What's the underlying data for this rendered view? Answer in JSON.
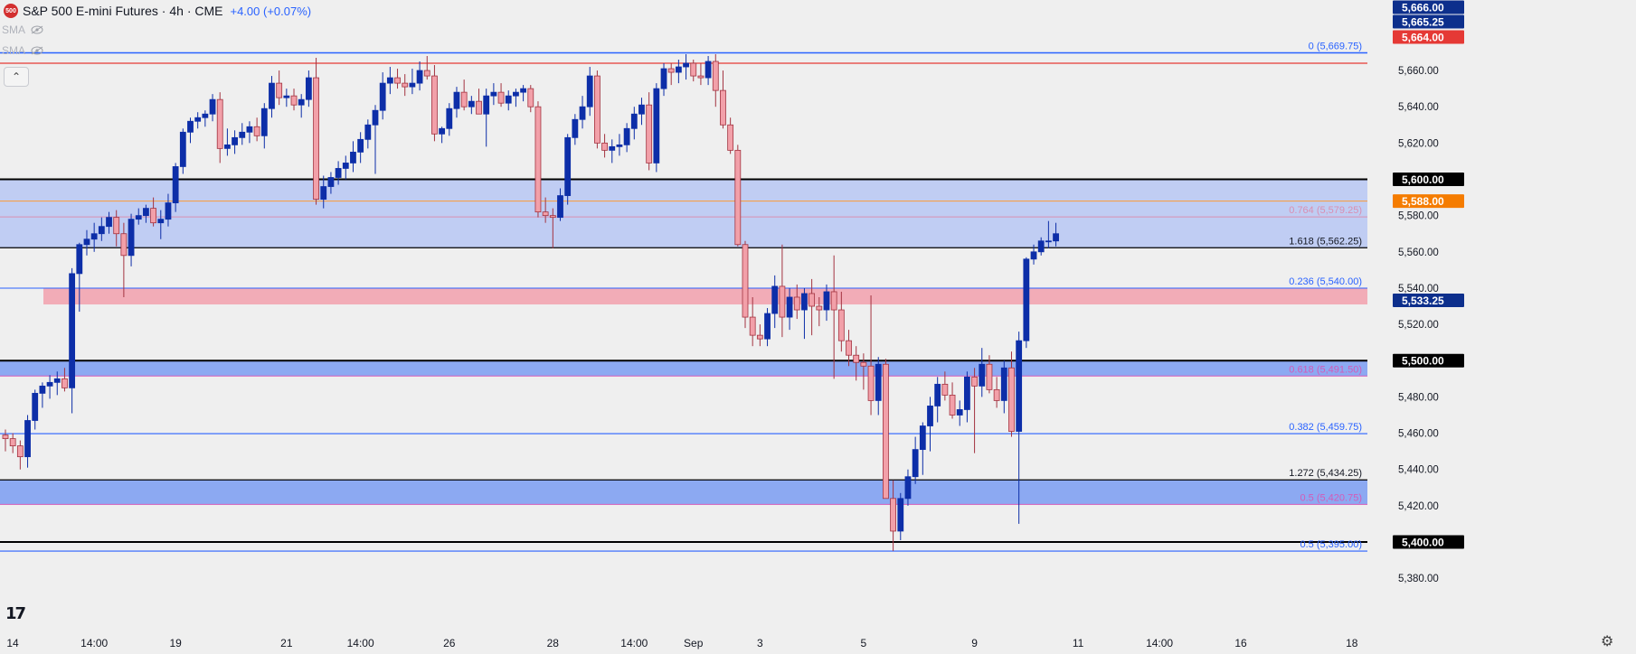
{
  "header": {
    "symbol_badge": "500",
    "title": "S&P 500 E-mini Futures · 4h · CME",
    "change": "+4.00 (+0.07%)"
  },
  "indicators": [
    {
      "label": "SMA",
      "icon": "eye-hidden-icon"
    },
    {
      "label": "SMA",
      "icon": "eye-hidden-icon"
    }
  ],
  "collapse_icon": "chevron-up-icon",
  "logo_text": "17",
  "settings_icon": "gear-icon",
  "chart_data": {
    "type": "candlestick",
    "title": "S&P 500 E-mini Futures · 4h · CME",
    "y_range": [
      5374,
      5670
    ],
    "y_ticks": [
      {
        "value": 5380,
        "label": "5,380.00"
      },
      {
        "value": 5420,
        "label": "5,420.00"
      },
      {
        "value": 5440,
        "label": "5,440.00"
      },
      {
        "value": 5460,
        "label": "5,460.00"
      },
      {
        "value": 5480,
        "label": "5,480.00"
      },
      {
        "value": 5520,
        "label": "5,520.00"
      },
      {
        "value": 5540,
        "label": "5,540.00"
      },
      {
        "value": 5560,
        "label": "5,560.00"
      },
      {
        "value": 5580,
        "label": "5,580.00"
      },
      {
        "value": 5620,
        "label": "5,620.00"
      },
      {
        "value": 5640,
        "label": "5,640.00"
      },
      {
        "value": 5660,
        "label": "5,660.00"
      }
    ],
    "x_ticks": [
      {
        "bar": 0,
        "label": "14"
      },
      {
        "bar": 12,
        "label": "14:00"
      },
      {
        "bar": 23,
        "label": "19"
      },
      {
        "bar": 38,
        "label": "21"
      },
      {
        "bar": 48,
        "label": "14:00"
      },
      {
        "bar": 60,
        "label": "26"
      },
      {
        "bar": 74,
        "label": "28"
      },
      {
        "bar": 85,
        "label": "14:00"
      },
      {
        "bar": 93,
        "label": "Sep"
      },
      {
        "bar": 102,
        "label": "3"
      },
      {
        "bar": 116,
        "label": "5"
      },
      {
        "bar": 131,
        "label": "9"
      },
      {
        "bar": 145,
        "label": "11"
      },
      {
        "bar": 156,
        "label": "14:00"
      },
      {
        "bar": 167,
        "label": "16"
      },
      {
        "bar": 182,
        "label": "18"
      }
    ],
    "price_labels": [
      {
        "value": 5666.0,
        "label": "5,666.00",
        "color": "#0d2f8c"
      },
      {
        "value": 5665.25,
        "label": "5,665.25",
        "color": "#0d2f8c"
      },
      {
        "value": 5664.0,
        "label": "5,664.00",
        "color": "#e53935"
      },
      {
        "value": 5600.0,
        "label": "5,600.00",
        "color": "#000000"
      },
      {
        "value": 5588.0,
        "label": "5,588.00",
        "color": "#f57c00"
      },
      {
        "value": 5533.25,
        "label": "5,533.25",
        "color": "#0d2f8c"
      },
      {
        "value": 5500.0,
        "label": "5,500.00",
        "color": "#000000"
      },
      {
        "value": 5400.0,
        "label": "5,400.00",
        "color": "#000000"
      }
    ],
    "zones": [
      {
        "from": 5562.25,
        "to": 5600.0,
        "color": "#b7c7f3"
      },
      {
        "from": 5531.0,
        "to": 5540.0,
        "color": "#f2a0ad"
      },
      {
        "from": 5491.5,
        "to": 5500.0,
        "color": "#7a9cf2"
      },
      {
        "from": 5420.75,
        "to": 5434.25,
        "color": "#7a9cf2"
      }
    ],
    "levels": [
      {
        "value": 5669.75,
        "label": "0 (5,669.75)",
        "color": "#2962ff",
        "lw": 1.5
      },
      {
        "value": 5664.0,
        "label": "",
        "color": "#e53935",
        "lw": 1.2
      },
      {
        "value": 5600.0,
        "label": "",
        "color": "#000000",
        "lw": 2
      },
      {
        "value": 5588.0,
        "label": "",
        "color": "#f5a04a",
        "lw": 1.2
      },
      {
        "value": 5579.25,
        "label": "0.764 (5,579.25)",
        "color": "#d98fb2",
        "lw": 1
      },
      {
        "value": 5562.25,
        "label": "1.618 (5,562.25)",
        "color": "#000000",
        "lw": 1.2
      },
      {
        "value": 5540.0,
        "label": "0.236 (5,540.00)",
        "color": "#2962ff",
        "lw": 1
      },
      {
        "value": 5500.0,
        "label": "",
        "color": "#000000",
        "lw": 2
      },
      {
        "value": 5491.5,
        "label": "0.618 (5,491.50)",
        "color": "#d35bb8",
        "lw": 1
      },
      {
        "value": 5459.75,
        "label": "0.382 (5,459.75)",
        "color": "#2962ff",
        "lw": 1.2
      },
      {
        "value": 5434.25,
        "label": "1.272 (5,434.25)",
        "color": "#000000",
        "lw": 1.2
      },
      {
        "value": 5420.75,
        "label": "0.5 (5,420.75)",
        "color": "#d35bb8",
        "lw": 1
      },
      {
        "value": 5400.0,
        "label": "",
        "color": "#000000",
        "lw": 2
      },
      {
        "value": 5395.0,
        "label": "0.5 (5,395.00)",
        "color": "#2962ff",
        "lw": 1.2
      }
    ],
    "ohlc": [
      [
        5459,
        5462,
        5450,
        5457
      ],
      [
        5457,
        5460,
        5449,
        5453
      ],
      [
        5453,
        5456,
        5440,
        5447
      ],
      [
        5447,
        5470,
        5441,
        5467
      ],
      [
        5467,
        5484,
        5462,
        5482
      ],
      [
        5482,
        5488,
        5474,
        5486
      ],
      [
        5486,
        5492,
        5479,
        5488
      ],
      [
        5488,
        5494,
        5481,
        5490
      ],
      [
        5490,
        5496,
        5483,
        5485
      ],
      [
        5485,
        5551,
        5471,
        5548
      ],
      [
        5548,
        5565,
        5527,
        5564
      ],
      [
        5564,
        5572,
        5558,
        5567
      ],
      [
        5567,
        5576,
        5560,
        5570
      ],
      [
        5570,
        5579,
        5566,
        5574
      ],
      [
        5574,
        5582,
        5570,
        5579
      ],
      [
        5579,
        5583,
        5563,
        5570
      ],
      [
        5570,
        5576,
        5535,
        5558
      ],
      [
        5558,
        5581,
        5552,
        5578
      ],
      [
        5578,
        5584,
        5575,
        5580
      ],
      [
        5580,
        5586,
        5576,
        5584
      ],
      [
        5584,
        5590,
        5574,
        5576
      ],
      [
        5576,
        5583,
        5567,
        5578
      ],
      [
        5578,
        5592,
        5574,
        5587
      ],
      [
        5587,
        5609,
        5582,
        5607
      ],
      [
        5607,
        5628,
        5603,
        5626
      ],
      [
        5626,
        5634,
        5620,
        5632
      ],
      [
        5632,
        5637,
        5628,
        5634
      ],
      [
        5634,
        5638,
        5629,
        5636
      ],
      [
        5636,
        5647,
        5632,
        5644
      ],
      [
        5644,
        5648,
        5609,
        5617
      ],
      [
        5617,
        5628,
        5613,
        5619
      ],
      [
        5619,
        5627,
        5614,
        5623
      ],
      [
        5623,
        5631,
        5619,
        5626
      ],
      [
        5626,
        5632,
        5620,
        5629
      ],
      [
        5629,
        5634,
        5621,
        5624
      ],
      [
        5624,
        5642,
        5617,
        5639
      ],
      [
        5639,
        5657,
        5634,
        5653
      ],
      [
        5653,
        5660,
        5641,
        5645
      ],
      [
        5645,
        5650,
        5640,
        5646
      ],
      [
        5646,
        5650,
        5638,
        5641
      ],
      [
        5641,
        5647,
        5634,
        5644
      ],
      [
        5644,
        5660,
        5640,
        5656
      ],
      [
        5656,
        5667,
        5586,
        5589
      ],
      [
        5589,
        5602,
        5584,
        5596
      ],
      [
        5596,
        5604,
        5592,
        5601
      ],
      [
        5601,
        5610,
        5597,
        5606
      ],
      [
        5606,
        5613,
        5600,
        5609
      ],
      [
        5609,
        5621,
        5604,
        5615
      ],
      [
        5615,
        5626,
        5609,
        5622
      ],
      [
        5622,
        5633,
        5617,
        5630
      ],
      [
        5630,
        5641,
        5603,
        5638
      ],
      [
        5638,
        5659,
        5633,
        5653
      ],
      [
        5653,
        5662,
        5647,
        5656
      ],
      [
        5656,
        5661,
        5650,
        5653
      ],
      [
        5653,
        5658,
        5646,
        5651
      ],
      [
        5651,
        5661,
        5647,
        5653
      ],
      [
        5653,
        5665,
        5649,
        5660
      ],
      [
        5660,
        5668,
        5655,
        5657
      ],
      [
        5657,
        5663,
        5621,
        5625
      ],
      [
        5625,
        5629,
        5620,
        5628
      ],
      [
        5628,
        5642,
        5624,
        5639
      ],
      [
        5639,
        5651,
        5634,
        5648
      ],
      [
        5648,
        5655,
        5638,
        5640
      ],
      [
        5640,
        5646,
        5636,
        5643
      ],
      [
        5643,
        5650,
        5637,
        5636
      ],
      [
        5636,
        5650,
        5618,
        5646
      ],
      [
        5646,
        5653,
        5641,
        5648
      ],
      [
        5648,
        5653,
        5640,
        5642
      ],
      [
        5642,
        5649,
        5638,
        5646
      ],
      [
        5646,
        5650,
        5640,
        5648
      ],
      [
        5648,
        5652,
        5643,
        5650
      ],
      [
        5650,
        5652,
        5637,
        5640
      ],
      [
        5640,
        5643,
        5579,
        5582
      ],
      [
        5582,
        5590,
        5576,
        5580
      ],
      [
        5580,
        5584,
        5562,
        5579
      ],
      [
        5579,
        5595,
        5577,
        5591
      ],
      [
        5591,
        5625,
        5586,
        5623
      ],
      [
        5623,
        5636,
        5619,
        5633
      ],
      [
        5633,
        5646,
        5628,
        5640
      ],
      [
        5640,
        5662,
        5635,
        5657
      ],
      [
        5657,
        5660,
        5617,
        5620
      ],
      [
        5620,
        5625,
        5612,
        5616
      ],
      [
        5616,
        5622,
        5609,
        5618
      ],
      [
        5618,
        5625,
        5613,
        5619
      ],
      [
        5619,
        5631,
        5615,
        5628
      ],
      [
        5628,
        5640,
        5622,
        5636
      ],
      [
        5636,
        5645,
        5630,
        5641
      ],
      [
        5641,
        5648,
        5605,
        5609
      ],
      [
        5609,
        5653,
        5604,
        5650
      ],
      [
        5650,
        5664,
        5646,
        5661
      ],
      [
        5661,
        5664,
        5652,
        5659
      ],
      [
        5659,
        5666,
        5653,
        5662
      ],
      [
        5662,
        5669,
        5655,
        5664
      ],
      [
        5664,
        5666,
        5654,
        5657
      ],
      [
        5657,
        5664,
        5652,
        5656
      ],
      [
        5656,
        5668,
        5652,
        5665
      ],
      [
        5665,
        5669,
        5640,
        5649
      ],
      [
        5649,
        5660,
        5628,
        5630
      ],
      [
        5630,
        5634,
        5614,
        5616
      ],
      [
        5616,
        5619,
        5563,
        5564
      ],
      [
        5564,
        5566,
        5518,
        5524
      ],
      [
        5524,
        5535,
        5508,
        5514
      ],
      [
        5514,
        5520,
        5508,
        5512
      ],
      [
        5512,
        5529,
        5508,
        5526
      ],
      [
        5526,
        5547,
        5518,
        5541
      ],
      [
        5541,
        5564,
        5513,
        5524
      ],
      [
        5524,
        5540,
        5517,
        5535
      ],
      [
        5535,
        5542,
        5523,
        5528
      ],
      [
        5528,
        5540,
        5512,
        5537
      ],
      [
        5537,
        5545,
        5514,
        5530
      ],
      [
        5530,
        5535,
        5519,
        5528
      ],
      [
        5528,
        5542,
        5522,
        5538
      ],
      [
        5538,
        5558,
        5490,
        5528
      ],
      [
        5528,
        5538,
        5505,
        5511
      ],
      [
        5511,
        5517,
        5497,
        5503
      ],
      [
        5503,
        5508,
        5489,
        5499
      ],
      [
        5499,
        5504,
        5484,
        5497
      ],
      [
        5497,
        5536,
        5470,
        5478
      ],
      [
        5478,
        5502,
        5470,
        5498
      ],
      [
        5498,
        5501,
        5424,
        5424
      ],
      [
        5424,
        5434,
        5395,
        5406
      ],
      [
        5406,
        5427,
        5401,
        5424
      ],
      [
        5424,
        5440,
        5420,
        5436
      ],
      [
        5436,
        5458,
        5432,
        5451
      ],
      [
        5451,
        5466,
        5437,
        5464
      ],
      [
        5464,
        5480,
        5450,
        5475
      ],
      [
        5475,
        5491,
        5466,
        5487
      ],
      [
        5487,
        5494,
        5478,
        5481
      ],
      [
        5481,
        5488,
        5468,
        5470
      ],
      [
        5470,
        5478,
        5464,
        5473
      ],
      [
        5473,
        5494,
        5466,
        5491
      ],
      [
        5491,
        5496,
        5449,
        5486
      ],
      [
        5486,
        5507,
        5480,
        5498
      ],
      [
        5498,
        5503,
        5482,
        5484
      ],
      [
        5484,
        5491,
        5474,
        5478
      ],
      [
        5478,
        5500,
        5471,
        5496
      ],
      [
        5496,
        5505,
        5458,
        5461
      ],
      [
        5461,
        5516,
        5410,
        5511
      ],
      [
        5511,
        5557,
        5507,
        5556
      ],
      [
        5556,
        5564,
        5553,
        5560
      ],
      [
        5560,
        5568,
        5558,
        5566
      ],
      [
        5566,
        5577,
        5562,
        5566
      ],
      [
        5566,
        5576,
        5563,
        5570
      ]
    ]
  }
}
